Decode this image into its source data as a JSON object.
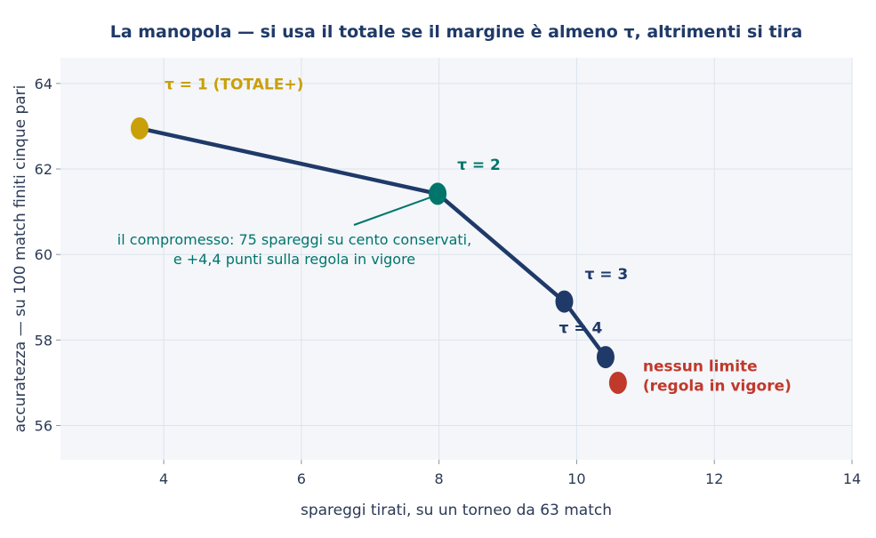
{
  "chart_data": {
    "type": "line",
    "title": "La manopola — si usa il totale se il margine è almeno τ, altrimenti si tira",
    "xlabel": "spareggi tirati, su un torneo da 63 match",
    "ylabel": "accuratezza — su 100 match finiti cinque pari",
    "xlim": [
      2.5,
      14
    ],
    "ylim": [
      55.2,
      64.6
    ],
    "xticks": [
      4,
      6,
      8,
      10,
      12,
      14
    ],
    "yticks": [
      56,
      58,
      60,
      62,
      64
    ],
    "grid": true,
    "series": [
      {
        "values": [
          {
            "x": 3.65,
            "y": 62.95,
            "label": "τ = 1  (TOTALE+)",
            "color": "#c9a008"
          },
          {
            "x": 7.98,
            "y": 61.42,
            "label": "τ = 2",
            "color": "#00756b"
          },
          {
            "x": 9.82,
            "y": 58.9,
            "label": "τ = 3",
            "color": "#1f3a68"
          },
          {
            "x": 10.42,
            "y": 57.6,
            "label": "τ = 4",
            "color": "#1f3a68"
          }
        ],
        "line_color": "#1f3a68"
      }
    ],
    "extra_points": [
      {
        "x": 10.6,
        "y": 57.0,
        "label_lines": [
          "nessun limite",
          "(regola in vigore)"
        ],
        "color": "#c0392b"
      }
    ],
    "annotation": {
      "lines": [
        "il compromesso: 75 spareggi su cento conservati,",
        "e +4,4 punti sulla regola in vigore"
      ],
      "color": "#00756b",
      "arrow_to": {
        "x": 7.98,
        "y": 61.42
      }
    },
    "colors": {
      "plot_bg": "#f4f6fa",
      "grid": "#dde3ec",
      "axis_text": "#2b3a55"
    }
  }
}
